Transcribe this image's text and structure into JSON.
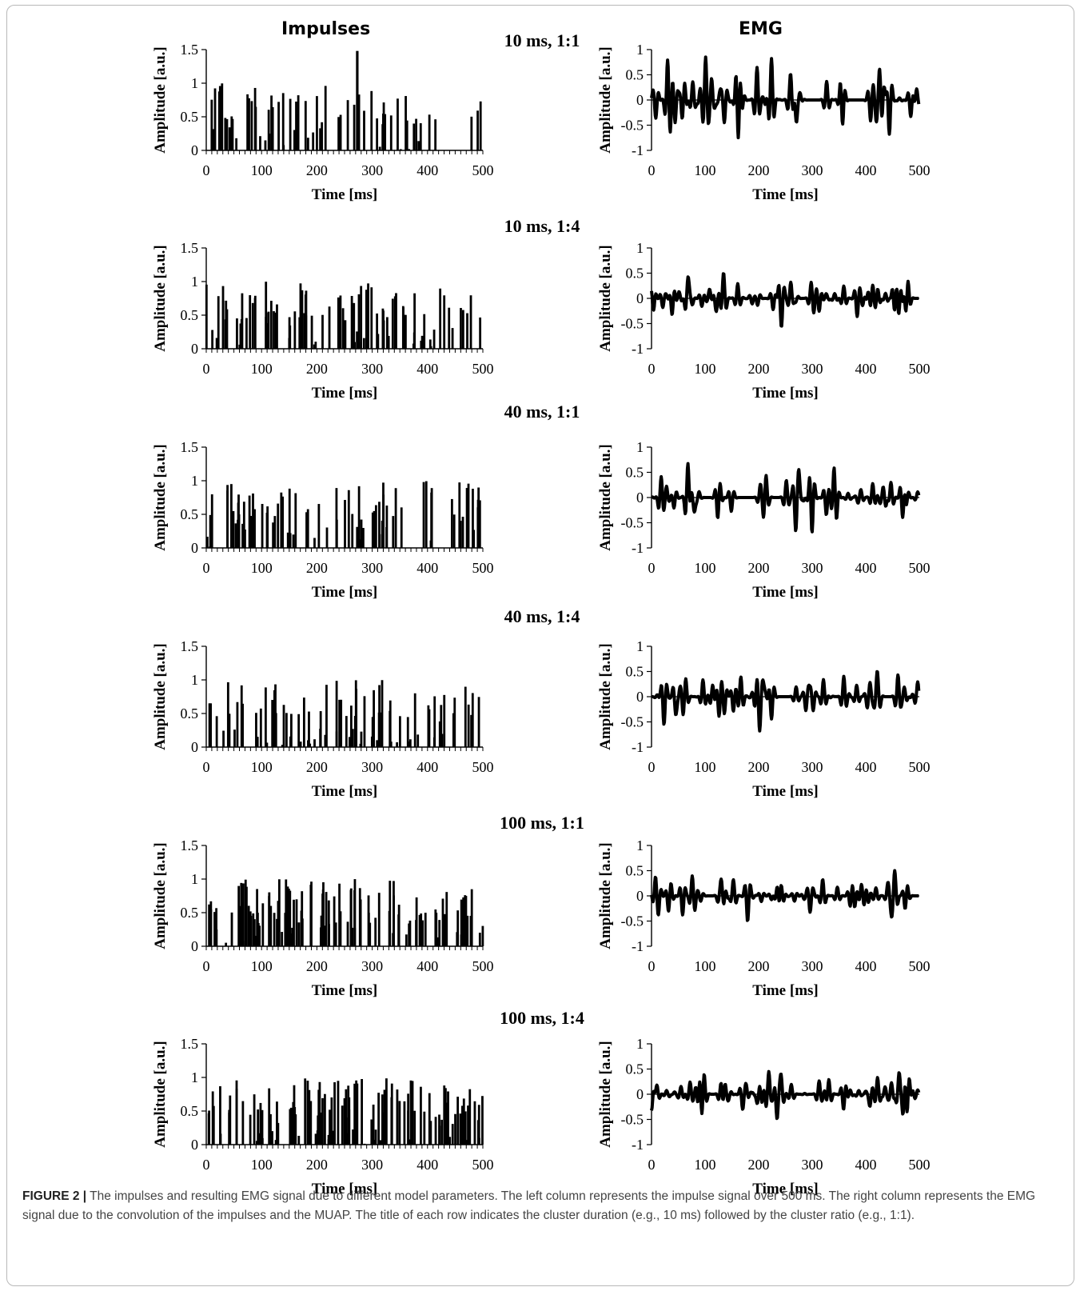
{
  "column_headers": {
    "left": "Impulses",
    "right": "EMG"
  },
  "rows": [
    {
      "title": "10 ms, 1:1"
    },
    {
      "title": "10 ms, 1:4"
    },
    {
      "title": "40 ms, 1:1"
    },
    {
      "title": "40 ms, 1:4"
    },
    {
      "title": "100 ms, 1:1"
    },
    {
      "title": "100 ms, 1:4"
    }
  ],
  "caption": {
    "label": "FIGURE 2 |",
    "text": " The impulses and resulting EMG signal due to different model parameters. The left column represents the impulse signal over 500 ms. The right column represents the EMG signal due to the convolution of the impulses and the MUAP. The title of each row indicates the cluster duration (e.g., 10 ms) followed by the cluster ratio (e.g., 1:1)."
  },
  "chart_data": [
    {
      "type": "bar",
      "row": 0,
      "column": "Impulses",
      "xlabel": "Time [ms]",
      "ylabel": "Amplitude [a.u.]",
      "xlim": [
        0,
        500
      ],
      "ylim": [
        0,
        1.5
      ],
      "xticks": [
        "0",
        "100",
        "200",
        "300",
        "400",
        "500"
      ],
      "yticks": [
        "0",
        "0.5",
        "1",
        "1.5"
      ],
      "impulse_times": [
        [
          0,
          500
        ]
      ],
      "impulse_density": 70,
      "seed": 11,
      "peak": {
        "x": 273,
        "y": 1.48
      }
    },
    {
      "type": "line",
      "row": 0,
      "column": "EMG",
      "xlabel": "Time [ms]",
      "ylabel": "Amplitude [a.u.]",
      "xlim": [
        0,
        500
      ],
      "ylim": [
        -1,
        1
      ],
      "xticks": [
        "0",
        "100",
        "200",
        "300",
        "400",
        "500"
      ],
      "yticks": [
        "-1",
        "-0.5",
        "0",
        "0.5",
        "1"
      ],
      "peak_amplitude": 0.85,
      "seed": 12
    },
    {
      "type": "bar",
      "row": 1,
      "column": "Impulses",
      "xlabel": "Time [ms]",
      "ylabel": "Amplitude [a.u.]",
      "xlim": [
        0,
        500
      ],
      "ylim": [
        0,
        1.5
      ],
      "xticks": [
        "0",
        "100",
        "200",
        "300",
        "400",
        "500"
      ],
      "yticks": [
        "0",
        "0.5",
        "1",
        "1.5"
      ],
      "impulse_times": [
        [
          0,
          500
        ]
      ],
      "impulse_density": 95,
      "seed": 21
    },
    {
      "type": "line",
      "row": 1,
      "column": "EMG",
      "xlabel": "Time [ms]",
      "ylabel": "Amplitude [a.u.]",
      "xlim": [
        0,
        500
      ],
      "ylim": [
        -1,
        1
      ],
      "xticks": [
        "0",
        "100",
        "200",
        "300",
        "400",
        "500"
      ],
      "yticks": [
        "-1",
        "-0.5",
        "0",
        "0.5",
        "1"
      ],
      "peak_amplitude": 0.55,
      "seed": 22
    },
    {
      "type": "bar",
      "row": 2,
      "column": "Impulses",
      "xlabel": "Time [ms]",
      "ylabel": "Amplitude [a.u.]",
      "xlim": [
        0,
        500
      ],
      "ylim": [
        0,
        1.5
      ],
      "xticks": [
        "0",
        "100",
        "200",
        "300",
        "400",
        "500"
      ],
      "yticks": [
        "0",
        "0.5",
        "1",
        "1.5"
      ],
      "impulse_times": [
        [
          0,
          500
        ]
      ],
      "impulse_density": 85,
      "seed": 31
    },
    {
      "type": "line",
      "row": 2,
      "column": "EMG",
      "xlabel": "Time [ms]",
      "ylabel": "Amplitude [a.u.]",
      "xlim": [
        0,
        500
      ],
      "ylim": [
        -1,
        1
      ],
      "xticks": [
        "0",
        "100",
        "200",
        "300",
        "400",
        "500"
      ],
      "yticks": [
        "-1",
        "-0.5",
        "0",
        "0.5",
        "1"
      ],
      "peak_amplitude": 0.68,
      "seed": 32
    },
    {
      "type": "bar",
      "row": 3,
      "column": "Impulses",
      "xlabel": "Time [ms]",
      "ylabel": "Amplitude [a.u.]",
      "xlim": [
        0,
        500
      ],
      "ylim": [
        0,
        1.5
      ],
      "xticks": [
        "0",
        "100",
        "200",
        "300",
        "400",
        "500"
      ],
      "yticks": [
        "0",
        "0.5",
        "1",
        "1.5"
      ],
      "impulse_times": [
        [
          0,
          500
        ]
      ],
      "impulse_density": 85,
      "seed": 41
    },
    {
      "type": "line",
      "row": 3,
      "column": "EMG",
      "xlabel": "Time [ms]",
      "ylabel": "Amplitude [a.u.]",
      "xlim": [
        0,
        500
      ],
      "ylim": [
        -1,
        1
      ],
      "xticks": [
        "0",
        "100",
        "200",
        "300",
        "400",
        "500"
      ],
      "yticks": [
        "-1",
        "-0.5",
        "0",
        "0.5",
        "1"
      ],
      "peak_amplitude": 0.68,
      "seed": 42
    },
    {
      "type": "bar",
      "row": 4,
      "column": "Impulses",
      "xlabel": "Time [ms]",
      "ylabel": "Amplitude [a.u.]",
      "xlim": [
        0,
        500
      ],
      "ylim": [
        0,
        1.5
      ],
      "xticks": [
        "0",
        "100",
        "200",
        "300",
        "400",
        "500"
      ],
      "yticks": [
        "0",
        "0.5",
        "1",
        "1.5"
      ],
      "impulse_times": [
        [
          0,
          500
        ]
      ],
      "impulse_density": 120,
      "seed": 51
    },
    {
      "type": "line",
      "row": 4,
      "column": "EMG",
      "xlabel": "Time [ms]",
      "ylabel": "Amplitude [a.u.]",
      "xlim": [
        0,
        500
      ],
      "ylim": [
        -1,
        1
      ],
      "xticks": [
        "0",
        "100",
        "200",
        "300",
        "400",
        "500"
      ],
      "yticks": [
        "-1",
        "-0.5",
        "0",
        "0.5",
        "1"
      ],
      "peak_amplitude": 0.5,
      "seed": 52
    },
    {
      "type": "bar",
      "row": 5,
      "column": "Impulses",
      "xlabel": "Time [ms]",
      "ylabel": "Amplitude [a.u.]",
      "xlim": [
        0,
        500
      ],
      "ylim": [
        0,
        1.5
      ],
      "xticks": [
        "0",
        "100",
        "200",
        "300",
        "400",
        "500"
      ],
      "yticks": [
        "0",
        "0.5",
        "1",
        "1.5"
      ],
      "impulse_times": [
        [
          0,
          500
        ]
      ],
      "impulse_density": 125,
      "seed": 61
    },
    {
      "type": "line",
      "row": 5,
      "column": "EMG",
      "xlabel": "Time [ms]",
      "ylabel": "Amplitude [a.u.]",
      "xlim": [
        0,
        500
      ],
      "ylim": [
        -1,
        1
      ],
      "xticks": [
        "0",
        "100",
        "200",
        "300",
        "400",
        "500"
      ],
      "yticks": [
        "-1",
        "-0.5",
        "0",
        "0.5",
        "1"
      ],
      "peak_amplitude": 0.48,
      "seed": 62
    }
  ]
}
